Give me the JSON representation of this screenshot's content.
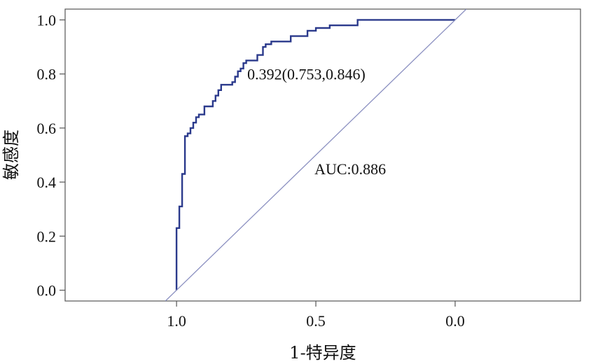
{
  "chart_data": {
    "type": "line",
    "title": "",
    "xlabel": "1-特异度",
    "ylabel": "敏感度",
    "x_reversed": true,
    "xlim": [
      1.4,
      -0.45
    ],
    "ylim": [
      -0.04,
      1.04
    ],
    "x_ticks": [
      1.0,
      0.5,
      0.0
    ],
    "x_tick_labels": [
      "1.0",
      "0.5",
      "0.0"
    ],
    "y_ticks": [
      0.0,
      0.2,
      0.4,
      0.6,
      0.8,
      1.0
    ],
    "y_tick_labels": [
      "0.0",
      "0.2",
      "0.4",
      "0.6",
      "0.8",
      "1.0"
    ],
    "grid": false,
    "series": [
      {
        "color": "#2b3a8c",
        "points": [
          [
            1.0,
            0.0
          ],
          [
            1.0,
            0.23
          ],
          [
            0.99,
            0.23
          ],
          [
            0.99,
            0.31
          ],
          [
            0.98,
            0.31
          ],
          [
            0.98,
            0.43
          ],
          [
            0.97,
            0.43
          ],
          [
            0.97,
            0.57
          ],
          [
            0.96,
            0.57
          ],
          [
            0.96,
            0.58
          ],
          [
            0.95,
            0.58
          ],
          [
            0.95,
            0.6
          ],
          [
            0.94,
            0.6
          ],
          [
            0.94,
            0.62
          ],
          [
            0.93,
            0.62
          ],
          [
            0.93,
            0.64
          ],
          [
            0.92,
            0.64
          ],
          [
            0.92,
            0.65
          ],
          [
            0.9,
            0.65
          ],
          [
            0.9,
            0.68
          ],
          [
            0.87,
            0.68
          ],
          [
            0.87,
            0.7
          ],
          [
            0.86,
            0.7
          ],
          [
            0.86,
            0.72
          ],
          [
            0.85,
            0.72
          ],
          [
            0.85,
            0.74
          ],
          [
            0.84,
            0.74
          ],
          [
            0.84,
            0.76
          ],
          [
            0.8,
            0.76
          ],
          [
            0.8,
            0.77
          ],
          [
            0.79,
            0.77
          ],
          [
            0.79,
            0.79
          ],
          [
            0.78,
            0.79
          ],
          [
            0.78,
            0.81
          ],
          [
            0.77,
            0.81
          ],
          [
            0.77,
            0.82
          ],
          [
            0.76,
            0.82
          ],
          [
            0.76,
            0.84
          ],
          [
            0.75,
            0.84
          ],
          [
            0.75,
            0.85
          ],
          [
            0.71,
            0.85
          ],
          [
            0.71,
            0.87
          ],
          [
            0.69,
            0.87
          ],
          [
            0.69,
            0.9
          ],
          [
            0.68,
            0.9
          ],
          [
            0.68,
            0.91
          ],
          [
            0.66,
            0.91
          ],
          [
            0.66,
            0.92
          ],
          [
            0.59,
            0.92
          ],
          [
            0.59,
            0.94
          ],
          [
            0.53,
            0.94
          ],
          [
            0.53,
            0.96
          ],
          [
            0.5,
            0.96
          ],
          [
            0.5,
            0.97
          ],
          [
            0.45,
            0.97
          ],
          [
            0.45,
            0.98
          ],
          [
            0.35,
            0.98
          ],
          [
            0.35,
            1.0
          ],
          [
            0.0,
            1.0
          ]
        ]
      },
      {
        "color": "#8a8fc0",
        "points": [
          [
            1.04,
            -0.04
          ],
          [
            -0.04,
            1.04
          ]
        ]
      }
    ],
    "annotations": [
      {
        "text": "0.392(0.753,0.846)",
        "x": 0.746,
        "y": 0.8
      },
      {
        "text": "AUC:0.886",
        "x": 0.505,
        "y": 0.45
      }
    ]
  }
}
